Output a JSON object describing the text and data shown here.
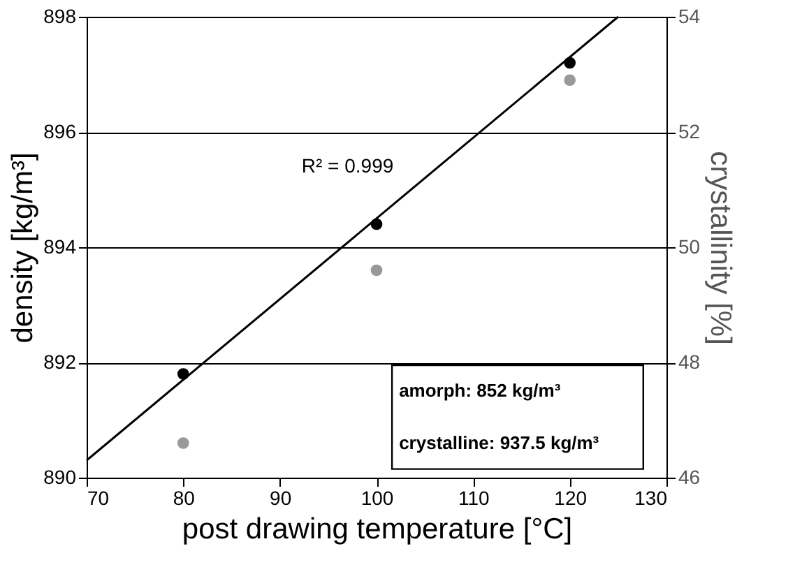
{
  "chart_data": {
    "type": "scatter",
    "xlabel": "post drawing temperature [°C]",
    "ylabel": "density [kg/m³]",
    "y2label": "crystallinity [%]",
    "xlim": [
      70,
      130
    ],
    "xticks": [
      70,
      80,
      90,
      100,
      110,
      120,
      130
    ],
    "ylim": [
      890,
      898
    ],
    "yticks": [
      890,
      892,
      894,
      896,
      898
    ],
    "y2lim": [
      46,
      54
    ],
    "y2ticks": [
      46,
      48,
      50,
      52,
      54
    ],
    "grid": "y",
    "marker": "circle",
    "series": [
      {
        "type": "line",
        "marker": "none",
        "line_style": "solid",
        "color": "#000000",
        "x": [
          70,
          125
        ],
        "values": [
          890.3,
          898
        ]
      },
      {
        "color": "#000000",
        "x": [
          80,
          100,
          120
        ],
        "values": [
          891.8,
          894.4,
          897.2
        ]
      },
      {
        "color": "#999999",
        "axis": "y2",
        "x": [
          80,
          100,
          120
        ],
        "values": [
          46.6,
          49.6,
          52.9
        ]
      }
    ],
    "annotations": [
      "R² = 0.999",
      "amorph: 852 kg/m³",
      "crystalline: 937.5 kg/m³"
    ]
  }
}
